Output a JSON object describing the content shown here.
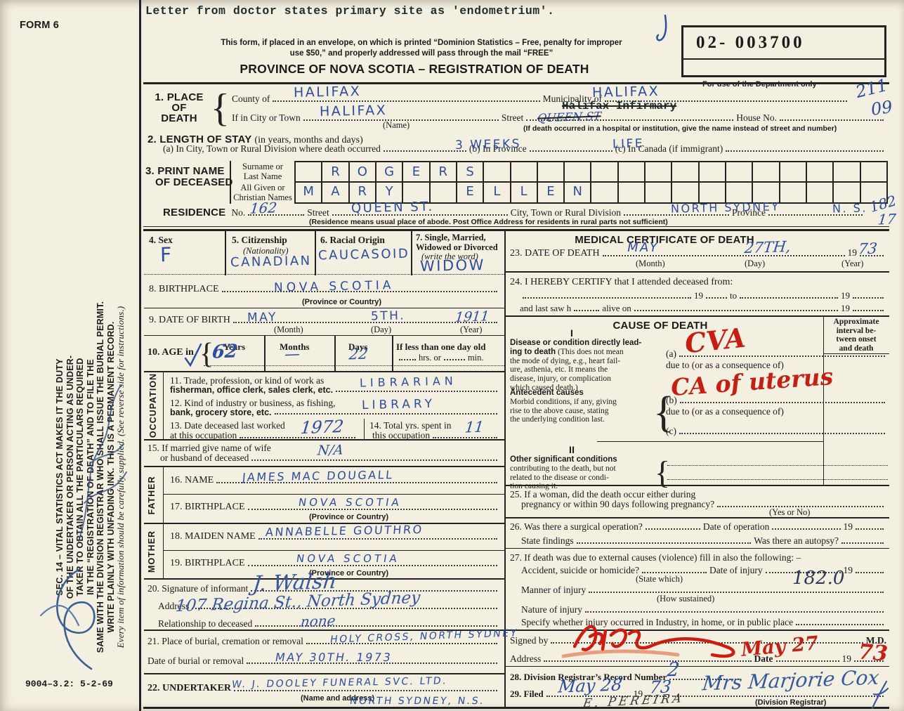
{
  "header": {
    "form_no": "FORM 6",
    "typed_note": "Letter from doctor states primary site as 'endometrium'.",
    "envelope_note_1": "This form, if placed in an envelope, on which is printed “Dominion Statistics – Free, penalty for improper",
    "envelope_note_2": "use $50,” and properly addressed will pass through the mail “FREE”",
    "title": "PROVINCE OF NOVA SCOTIA – REGISTRATION OF DEATH",
    "dept_box_number": "02-  003700",
    "dept_caption": "For use of the Department only",
    "hw_code_top": "211",
    "hw_code_bottom": "09",
    "doc_code": "9004–3.2: 5-2-69"
  },
  "sidebar": {
    "lines": [
      "SEC. 14 – VITAL STATISTICS ACT MAKES IT THE DUTY",
      "OF THE UNDERTAKER OR PERSON ACTING AS UNDER-",
      "TAKER TO OBTAIN ALL THE PARTICULARS REQUIRED",
      "IN THE “REGISTRATION OF DEATH” AND TO FILE THE",
      "SAME WITH THE DIVISION REGISTRAR WHO SHALL ISSUE THE BURIAL PERMIT.",
      "WRITE PLAINLY WITH UNFADING INK. THIS IS A PERMANENT RECORD."
    ],
    "note": "Every item of information should be carefully supplied.  (See reverse side for instructions.)"
  },
  "s1": {
    "n1": "1. PLACE",
    "n2": "OF",
    "n3": "DEATH",
    "county": "County of",
    "county_v": "HALIFAX",
    "municipality": "Municipality of",
    "municipality_v": "HALIFAX",
    "city": "If in City or Town",
    "city_v": "HALIFAX",
    "name_sub": "(Name)",
    "street": "Street",
    "street_typed": "Halifax Infirmary",
    "street_hw": "QUEEN ST",
    "house": "House No.",
    "hosp_note": "(If death occurred in a hospital or institution, give the name instead of street and number)"
  },
  "s2": {
    "t": "2. LENGTH OF STAY",
    "t2": "(in years, months and days)",
    "a": "(a) In City, Town or Rural Division where death occurred",
    "a_v": "3 WEEKS",
    "b": "(b) In Province",
    "b_v": "LIFE",
    "c": "(c) In Canada (if immigrant)"
  },
  "s3": {
    "t1": "3. PRINT NAME",
    "t2": "OF DECEASED",
    "sur1": "Surname or",
    "sur2": "Last Name",
    "giv1": "All Given or",
    "giv2": "Christian Names",
    "surname_cells": [
      "",
      "R",
      "O",
      "G",
      "E",
      "R",
      "S",
      "",
      "",
      "",
      "",
      "",
      "",
      "",
      "",
      "",
      "",
      "",
      "",
      "",
      "",
      ""
    ],
    "given_cells": [
      "M",
      "A",
      "R",
      "Y",
      "",
      "",
      "E",
      "L",
      "L",
      "E",
      "N",
      "",
      "",
      "",
      "",
      "",
      "",
      "",
      "",
      "",
      "",
      ""
    ]
  },
  "res": {
    "t": "RESIDENCE",
    "no": "No.",
    "no_v": "162",
    "street": "Street",
    "street_v": "QUEEN ST.",
    "division": "City, Town or Rural Division",
    "division_v": "NORTH SYDNEY",
    "province": "Province",
    "province_v": "N. S.",
    "code1": "182",
    "code2": "17",
    "note": "(Residence means usual place of abode. Post Office Address for residents in rural parts not sufficient)"
  },
  "s4": {
    "t": "4. Sex",
    "v": "F"
  },
  "s5": {
    "t": "5. Citizenship",
    "t2": "(Nationality)",
    "v": "CANADIAN"
  },
  "s6": {
    "t": "6. Racial Origin",
    "v": "CAUCASOID"
  },
  "s7": {
    "t": "7. Single, Married,",
    "t2": "Widowed or Divorced",
    "t3": "(write the word)",
    "v": "WIDOW"
  },
  "s8": {
    "t": "8. BIRTHPLACE",
    "v": "NOVA SCOTIA",
    "sub": "(Province or Country)"
  },
  "s9": {
    "t": "9. DATE OF BIRTH",
    "m": "(Month)",
    "m_v": "MAY",
    "d": "(Day)",
    "d_v": "5TH.",
    "y": "(Year)",
    "y_v": "1911"
  },
  "s10": {
    "t": "10. AGE in",
    "years": "Years",
    "years_v": "62",
    "months": "Months",
    "months_v": "—",
    "days": "Days",
    "days_v": "22",
    "less": "If less than one day old",
    "hrs": "hrs. or",
    "min": "min."
  },
  "occ": {
    "vert": "OCCUPATION",
    "s11a": "11. Trade, profession, or kind of work as",
    "s11b": "fisherman, office clerk, sales clerk, etc.",
    "s11_v": "LIBRARIAN",
    "s12a": "12. Kind of industry or business, as fishing,",
    "s12b": "bank, grocery store, etc.",
    "s12_v": "LIBRARY",
    "s13a": "13. Date deceased last worked",
    "s13b": "at this occupation",
    "s13_v": "1972",
    "s14a": "14. Total yrs. spent in",
    "s14b": "this occupation",
    "s14_v": "11"
  },
  "s15": {
    "a": "15. If married give name of wife",
    "b": "or husband of deceased",
    "v": "N/A"
  },
  "fam": {
    "father": "FATHER",
    "mother": "MOTHER",
    "s16": "16. NAME",
    "s16_v": "JAMES MAC DOUGALL",
    "s17": "17. BIRTHPLACE",
    "s17_v": "NOVA SCOTIA",
    "sub17": "(Province or Country)",
    "s18": "18. MAIDEN NAME",
    "s18_v": "ANNABELLE GOUTHRO",
    "s19": "19. BIRTHPLACE",
    "s19_v": "NOVA SCOTIA",
    "sub19": "(Province or Country)"
  },
  "s20": {
    "t": "20. Signature of informant",
    "sig_v": "J. Walsh",
    "addr": "Address",
    "addr_v": "107 Regina St., North Sydney",
    "rel": "Relationship to deceased",
    "rel_v": "none"
  },
  "s21": {
    "a": "21. Place of burial, cremation or removal",
    "a_v": "HOLY CROSS, NORTH SYDNEY",
    "b": "Date of burial or removal",
    "b_v": "MAY  30TH.  1973"
  },
  "s22": {
    "t": "22. UNDERTAKER",
    "v": "W. J. DOOLEY FUNERAL SVC. LTD.",
    "sub": "(Name and address)",
    "v2": "NORTH SYDNEY, N.S."
  },
  "med": {
    "header": "MEDICAL CERTIFICATE OF DEATH",
    "s23": "23. DATE OF DEATH",
    "m": "(Month)",
    "m_v": "MAY",
    "d": "(Day)",
    "d_v": "27TH,",
    "y": "(Year)",
    "y19": "19",
    "y_v": "73",
    "s24": "24. I HEREBY CERTIFY that I attended deceased from:",
    "l2a": "19",
    "l2b": "to",
    "l2c": "19",
    "l3a": "and last saw h",
    "l3b": "alive on",
    "l3c": "19"
  },
  "cause": {
    "header": "CAUSE OF DEATH",
    "interval": [
      "Approximate",
      "interval be-",
      "tween onset",
      "and death"
    ],
    "p1_roman": "I",
    "p1_bold1": "Disease or condition directly lead-",
    "p1_bold2": "ing to death",
    "p1_desc": [
      "(This does not mean",
      "the mode of dying, e.g., heart fail-",
      "ure, asthenia, etc.  It means the",
      "disease, injury, or complication",
      "which caused death.)"
    ],
    "a_label": "(a)",
    "a_v": "CVA",
    "due_a": "due to (or as a consequence of)",
    "ant_bold": "Antecedent causes",
    "ant_desc": [
      "Morbid conditions, if any, giving",
      "rise to the above cause, stating",
      "the underlying condition last."
    ],
    "b_label": "(b)",
    "b_v": "CA of uterus",
    "due_b": "due to (or as a consequence of)",
    "c_label": "(c)",
    "p2_roman": "II",
    "p2_bold": "Other significant conditions",
    "p2_desc": [
      "contributing to the death, but not",
      "related to the disease or condi-",
      "tion causing it."
    ]
  },
  "s25": {
    "a": "25. If a woman, did the death occur either during",
    "b": "pregnancy or within 90 days following pregnancy?",
    "sub": "(Yes or No)"
  },
  "s26": {
    "a": "26. Was there a surgical operation?",
    "b": "Date of operation",
    "c": "19",
    "d": "State findings",
    "e": "Was there an autopsy?"
  },
  "s27": {
    "t": "27. If death was due to external causes (violence) fill in also the following: –",
    "a": "Accident, suicide or homicide?",
    "a_sub": "(State which)",
    "b": "Date of injury",
    "c": "19",
    "d": "Manner of injury",
    "d_sub": "(How sustained)",
    "d_v": "182.0",
    "e": "Nature of injury",
    "f": "Specify whether injury occurred in Industry, in home, or in public place"
  },
  "sig": {
    "a": "Signed by",
    "md": "M.D.",
    "addr": "Address",
    "date": "Date",
    "date_v": "May 27",
    "y19": "19",
    "y_v": "73"
  },
  "s28": {
    "t": "28. Division Registrar’s Record Number",
    "v": "2"
  },
  "s29": {
    "t": "29. Filed",
    "v1": "May  28",
    "y19": "19",
    "y_v": "73",
    "clerk": "E. PEREIRA",
    "registrar": "Mrs Marjorie Cox",
    "sub": "(Division Registrar)"
  }
}
